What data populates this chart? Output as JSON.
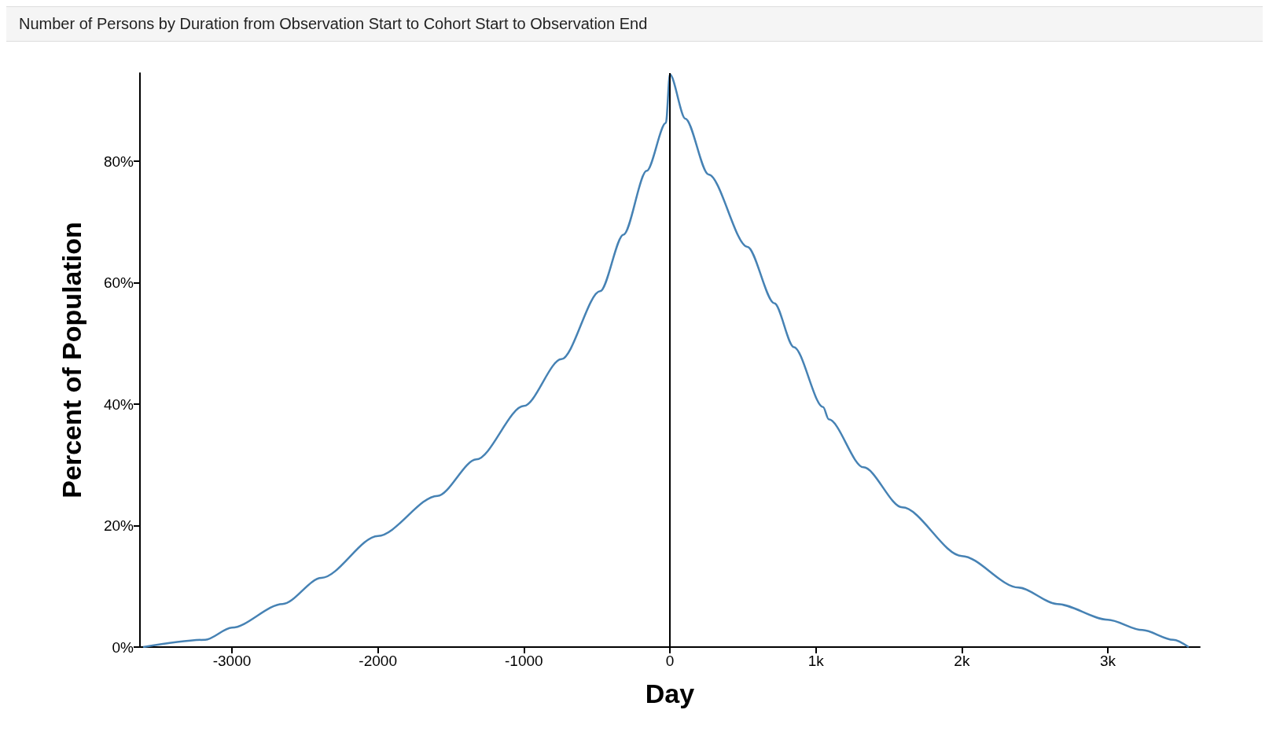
{
  "chart_data": {
    "type": "line",
    "title": "Number of Persons by Duration from Observation Start to Cohort Start to Observation End",
    "xlabel": "Day",
    "ylabel": "Percent of Population",
    "x": [
      -3608,
      -3183,
      -3000,
      -2653,
      -2387,
      -2000,
      -1592,
      -1326,
      -1000,
      -743,
      -477,
      -318,
      -159,
      -27,
      0,
      106,
      265,
      531,
      716,
      849,
      1050,
      1088,
      1326,
      1592,
      2000,
      2387,
      2653,
      3000,
      3236,
      3448,
      3554
    ],
    "series": [
      {
        "color": "#4682b4",
        "values": [
          0,
          1.2,
          3.2,
          7.1,
          11.4,
          18.3,
          24.9,
          30.9,
          39.7,
          47.4,
          58.6,
          67.9,
          78.4,
          86.3,
          94.3,
          87.0,
          77.8,
          65.9,
          56.6,
          49.4,
          39.5,
          37.5,
          29.6,
          23.0,
          15.0,
          9.8,
          7.1,
          4.5,
          2.8,
          1.2,
          0
        ]
      }
    ],
    "xlim": [
      -3630,
      3630
    ],
    "xticks": [
      -3000,
      -2000,
      -1000,
      0,
      {
        "value": 1000,
        "label": "1k"
      },
      {
        "value": 2000,
        "label": "2k"
      },
      {
        "value": 3000,
        "label": "3k"
      }
    ],
    "ylim": [
      0,
      94.5
    ],
    "yticks": [
      {
        "value": 0,
        "label": "0%"
      },
      {
        "value": 20,
        "label": "20%"
      },
      {
        "value": 40,
        "label": "40%"
      },
      {
        "value": 60,
        "label": "60%"
      },
      {
        "value": 80,
        "label": "80%"
      }
    ],
    "ref_lines": [
      {
        "axis": "x",
        "value": 0,
        "color": "#000000"
      }
    ],
    "grid": false,
    "marker": "none",
    "line_style": "solid"
  }
}
